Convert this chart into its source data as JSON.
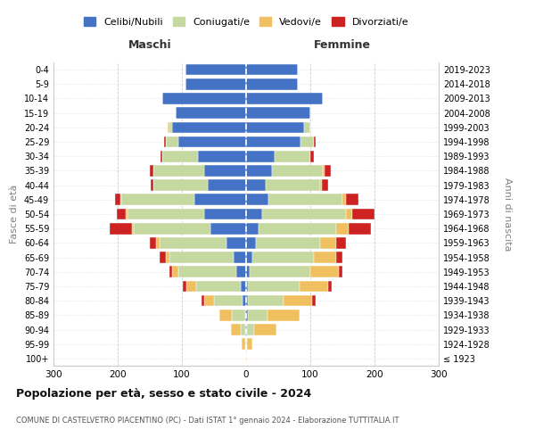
{
  "age_groups": [
    "100+",
    "95-99",
    "90-94",
    "85-89",
    "80-84",
    "75-79",
    "70-74",
    "65-69",
    "60-64",
    "55-59",
    "50-54",
    "45-49",
    "40-44",
    "35-39",
    "30-34",
    "25-29",
    "20-24",
    "15-19",
    "10-14",
    "5-9",
    "0-4"
  ],
  "birth_years": [
    "≤ 1923",
    "1924-1928",
    "1929-1933",
    "1934-1938",
    "1939-1943",
    "1944-1948",
    "1949-1953",
    "1954-1958",
    "1959-1963",
    "1964-1968",
    "1969-1973",
    "1974-1978",
    "1979-1983",
    "1984-1988",
    "1989-1993",
    "1994-1998",
    "1999-2003",
    "2004-2008",
    "2009-2013",
    "2014-2018",
    "2019-2023"
  ],
  "colors": {
    "celibi": "#4472c4",
    "coniugati": "#c5d8a0",
    "vedovi": "#f0c060",
    "divorziati": "#cc2222"
  },
  "maschi": {
    "celibi": [
      0,
      0,
      1,
      2,
      5,
      8,
      15,
      20,
      30,
      55,
      65,
      80,
      60,
      65,
      75,
      105,
      115,
      110,
      130,
      95,
      95
    ],
    "coniugati": [
      0,
      2,
      8,
      20,
      45,
      70,
      90,
      100,
      105,
      120,
      120,
      115,
      85,
      80,
      55,
      20,
      5,
      0,
      0,
      0,
      0
    ],
    "vedovi": [
      0,
      5,
      15,
      20,
      15,
      15,
      10,
      5,
      5,
      3,
      2,
      1,
      0,
      0,
      0,
      0,
      2,
      0,
      0,
      0,
      0
    ],
    "divorziati": [
      0,
      0,
      0,
      0,
      5,
      5,
      5,
      10,
      10,
      35,
      15,
      8,
      3,
      5,
      3,
      3,
      0,
      0,
      0,
      0,
      0
    ]
  },
  "femmine": {
    "celibi": [
      0,
      0,
      2,
      3,
      3,
      3,
      5,
      10,
      15,
      20,
      25,
      35,
      30,
      40,
      45,
      85,
      90,
      100,
      120,
      80,
      80
    ],
    "coniugati": [
      0,
      2,
      10,
      30,
      55,
      80,
      95,
      95,
      100,
      120,
      130,
      115,
      85,
      80,
      55,
      20,
      10,
      0,
      0,
      0,
      0
    ],
    "vedovi": [
      2,
      8,
      35,
      50,
      45,
      45,
      45,
      35,
      25,
      20,
      10,
      5,
      3,
      2,
      0,
      0,
      0,
      0,
      0,
      0,
      0
    ],
    "divorziati": [
      0,
      0,
      0,
      0,
      5,
      5,
      5,
      10,
      15,
      35,
      35,
      20,
      10,
      10,
      5,
      3,
      0,
      0,
      0,
      0,
      0
    ]
  },
  "title": "Popolazione per età, sesso e stato civile - 2024",
  "subtitle": "COMUNE DI CASTELVETRO PIACENTINO (PC) - Dati ISTAT 1° gennaio 2024 - Elaborazione TUTTITALIA.IT",
  "xlabel_maschi": "Maschi",
  "xlabel_femmine": "Femmine",
  "ylabel": "Fasce di età",
  "ylabel_right": "Anni di nascita",
  "xlim": 300,
  "bg_color": "#ffffff",
  "grid_color": "#cccccc",
  "legend_labels": [
    "Celibi/Nubili",
    "Coniugati/e",
    "Vedovi/e",
    "Divorziati/e"
  ]
}
